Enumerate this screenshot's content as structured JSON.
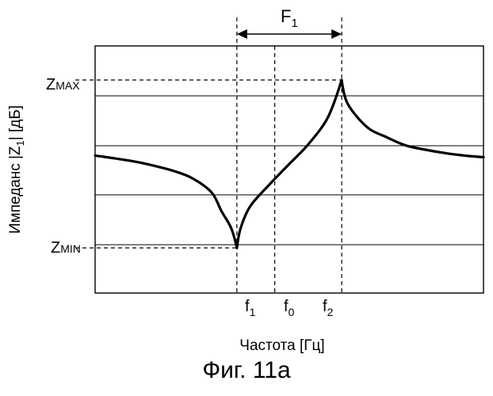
{
  "caption": "Фиг. 11a",
  "chart_data": {
    "type": "line",
    "title": "",
    "xlabel": "Частота [Гц]",
    "ylabel_main": "Импеданс |Z",
    "ylabel_sub": "1",
    "ylabel_tail": "| [дБ]",
    "y_markers": [
      {
        "main": "Z",
        "sub": "MAX"
      },
      {
        "main": "Z",
        "sub": "MIN"
      }
    ],
    "x_markers": [
      {
        "main": "f",
        "sub": "1"
      },
      {
        "main": "f",
        "sub": "0"
      },
      {
        "main": "f",
        "sub": "2"
      }
    ],
    "span_label": {
      "main": "F",
      "sub": "1"
    },
    "x": [
      0,
      4,
      6,
      8,
      10,
      12,
      13,
      14,
      14.6,
      15,
      16,
      18,
      20,
      22,
      24,
      25.4,
      26,
      28,
      30,
      32,
      34,
      36,
      38,
      40
    ],
    "y": [
      0.55,
      0.515,
      0.49,
      0.46,
      0.415,
      0.33,
      0.22,
      0.12,
      0.0,
      0.12,
      0.25,
      0.38,
      0.5,
      0.62,
      0.78,
      1.0,
      0.86,
      0.72,
      0.66,
      0.61,
      0.585,
      0.565,
      0.55,
      0.54
    ],
    "f1_x": 14.6,
    "f0_x": 18.5,
    "f2_x": 25.4,
    "zmin_y": 0.0,
    "zmax_y": 1.0,
    "grid": true,
    "legend": "none"
  }
}
